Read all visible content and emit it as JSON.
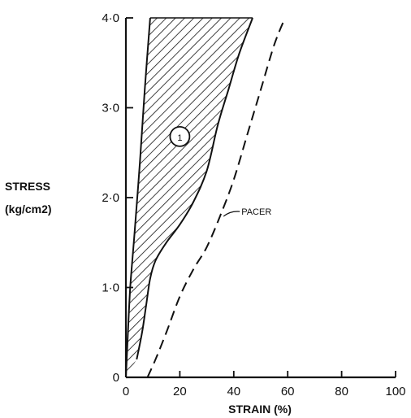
{
  "chart_data": {
    "type": "line",
    "title": "",
    "xlabel": "STRAIN (%)",
    "ylabel_lines": [
      "STRESS",
      "(kg/cm2)"
    ],
    "xlim": [
      0,
      100
    ],
    "ylim": [
      0,
      4
    ],
    "grid": false,
    "x_ticks": [
      0,
      20,
      40,
      60,
      80,
      100
    ],
    "x_tick_labels": [
      "0",
      "20",
      "40",
      "60",
      "80",
      "100"
    ],
    "y_ticks": [
      0,
      1,
      2,
      3,
      4
    ],
    "y_tick_labels": [
      "0",
      "1·0",
      "2·0",
      "3·0",
      "4·0"
    ],
    "series": [
      {
        "style": "solid",
        "role": "band-lower-bound",
        "points": [
          [
            0,
            0
          ],
          [
            0.6,
            0.4
          ],
          [
            1.6,
            1.0
          ],
          [
            3.2,
            1.6
          ],
          [
            5.2,
            2.4
          ],
          [
            7,
            3.2
          ],
          [
            9,
            4.0
          ]
        ]
      },
      {
        "style": "solid",
        "role": "band-upper-bound",
        "points": [
          [
            4,
            0.2
          ],
          [
            6,
            0.5
          ],
          [
            7.5,
            0.8
          ],
          [
            9,
            1.1
          ],
          [
            11,
            1.3
          ],
          [
            15,
            1.5
          ],
          [
            20,
            1.7
          ],
          [
            25,
            1.95
          ],
          [
            30,
            2.3
          ],
          [
            34,
            2.8
          ],
          [
            38,
            3.2
          ],
          [
            42,
            3.6
          ],
          [
            47,
            4.0
          ]
        ]
      },
      {
        "name": "PACER",
        "style": "dashed",
        "points": [
          [
            8,
            0
          ],
          [
            11,
            0.2
          ],
          [
            15,
            0.5
          ],
          [
            20,
            0.9
          ],
          [
            25,
            1.2
          ],
          [
            30,
            1.45
          ],
          [
            35,
            1.8
          ],
          [
            40,
            2.2
          ],
          [
            45,
            2.7
          ],
          [
            50,
            3.2
          ],
          [
            55,
            3.7
          ],
          [
            59,
            4.0
          ]
        ]
      }
    ],
    "shaded_region": {
      "between": [
        "band-lower-bound",
        "band-upper-bound"
      ],
      "pattern": "diagonal-hatch",
      "top": 4.0
    },
    "annotations": [
      {
        "text": "PACER",
        "target_series": "PACER",
        "at": [
          35,
          1.8
        ]
      },
      {
        "text": "1",
        "shape": "circle",
        "at": [
          20,
          2.68
        ]
      }
    ],
    "colors": {
      "ink": "#111111",
      "background": "#ffffff"
    }
  }
}
